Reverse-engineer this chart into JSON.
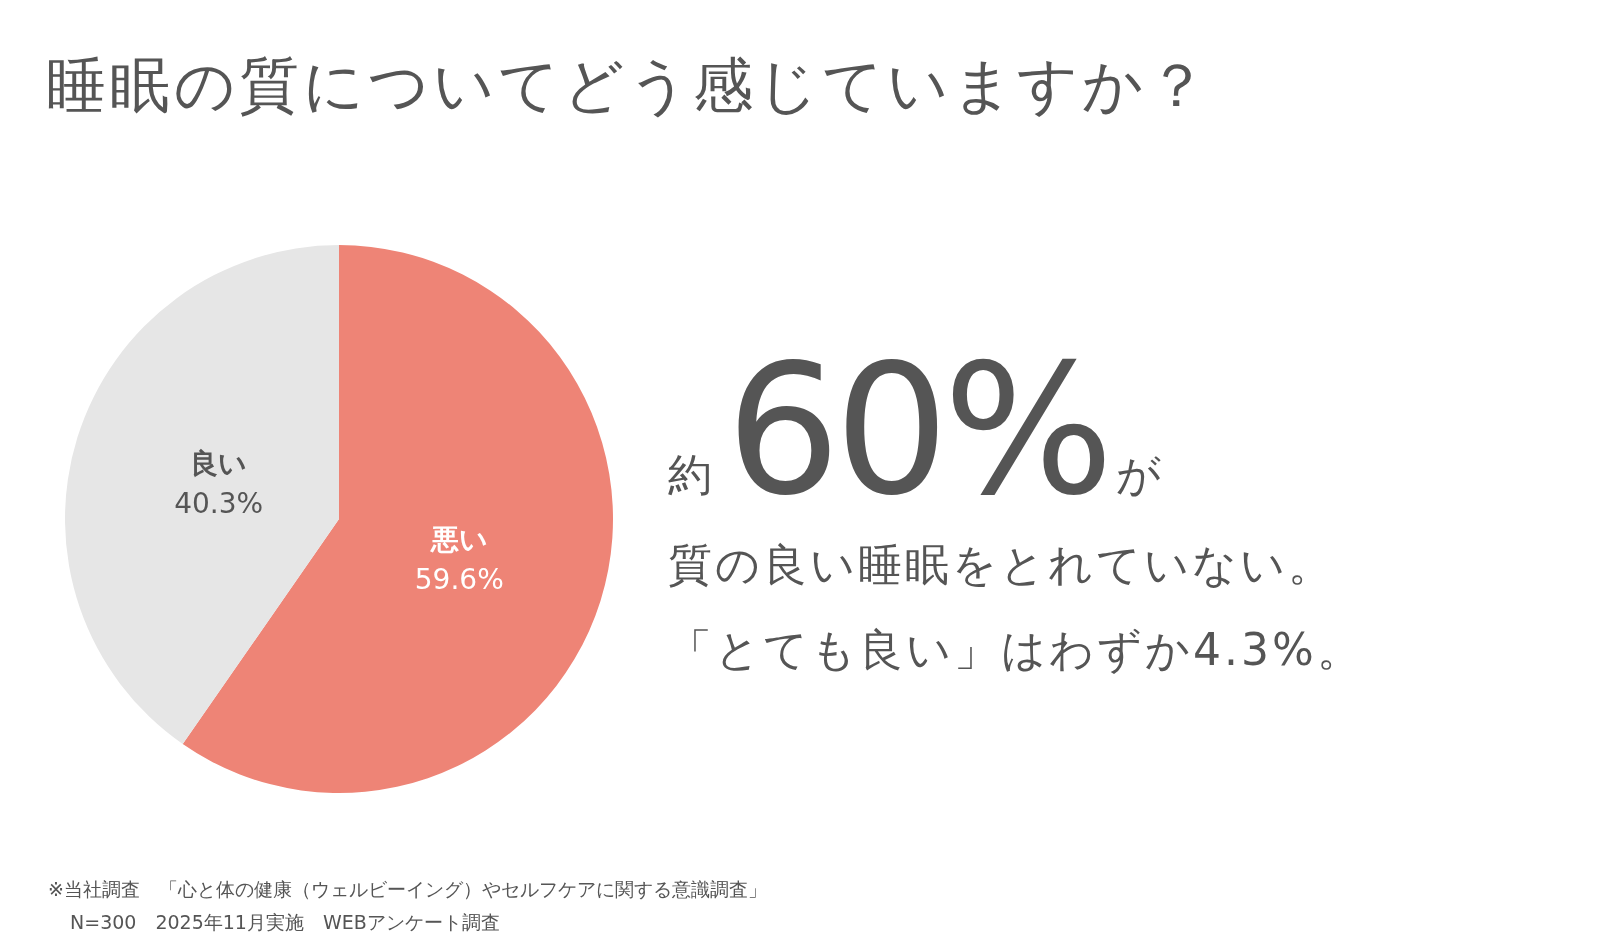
{
  "chart_data": {
    "type": "pie",
    "title": "睡眠の質についてどう感じていますか？",
    "categories": [
      "悪い",
      "良い"
    ],
    "values": [
      59.6,
      40.3
    ],
    "colors": [
      "#ee8476",
      "#e6e6e6"
    ],
    "value_labels": [
      "59.6%",
      "40.3%"
    ],
    "annotations": [
      "約",
      "60%",
      "が",
      "質の良い睡眠をとれていない。",
      "「とても良い」はわずか4.3%。",
      "※当社調査　「心と体の健康（ウェルビーイング）やセルフケアに関する意識調査」",
      "N=300　2025年11月実施　WEBアンケート調査"
    ]
  }
}
